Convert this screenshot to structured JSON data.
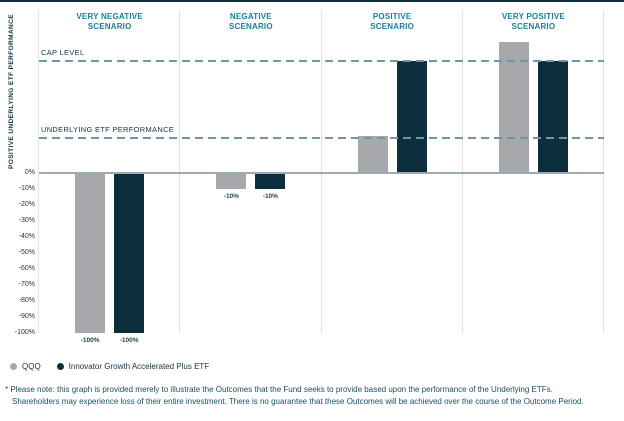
{
  "colors": {
    "qqq_gray": "#a6a8ab",
    "etf_navy": "#0d2e3c",
    "heading_teal": "#1b7f9a",
    "dashed_reference": "#7097a2",
    "baseline_gray": "#9faaae",
    "axis_text_navy": "#16323f",
    "footnote_navy": "#1d4e63"
  },
  "chart_data": {
    "type": "bar",
    "title": "",
    "y_axis_title": "POSITIVE UNDERLYING ETF PERFORMANCE",
    "categories": [
      "VERY NEGATIVE SCENARIO",
      "NEGATIVE SCENARIO",
      "POSITIVE SCENARIO",
      "VERY POSITIVE SCENARIO"
    ],
    "series": [
      {
        "name": "QQQ",
        "color": "#a6a8ab",
        "values": [
          -100,
          -10,
          23,
          82
        ]
      },
      {
        "name": "Innovator Growth Accelerated Plus ETF",
        "color": "#0d2e3c",
        "values": [
          -100,
          -10,
          70,
          70
        ]
      }
    ],
    "bar_labels": [
      [
        "-100%",
        "-100%"
      ],
      [
        "-10%",
        "-10%"
      ],
      [
        "",
        ""
      ],
      [
        "",
        ""
      ]
    ],
    "reference_lines": [
      {
        "label": "CAP LEVEL",
        "value": 70
      },
      {
        "label": "UNDERLYING ETF PERFORMANCE",
        "value": 22
      }
    ],
    "y_ticks": [
      {
        "label": "0%",
        "value": 0
      },
      {
        "label": "-10%",
        "value": -10
      },
      {
        "label": "-20%",
        "value": -20
      },
      {
        "label": "-30%",
        "value": -30
      },
      {
        "label": "-40%",
        "value": -40
      },
      {
        "label": "-50%",
        "value": -50
      },
      {
        "label": "-60%",
        "value": -60
      },
      {
        "label": "-70%",
        "value": -70
      },
      {
        "label": "-80%",
        "value": -80
      },
      {
        "label": "-90%",
        "value": -90
      },
      {
        "label": "-100%",
        "value": -100
      }
    ],
    "ylim": [
      -100,
      102
    ],
    "grid": "section-dividers-vertical",
    "legend_position": "bottom-left"
  },
  "footnote": {
    "line1": "* Please note: this graph is provided merely to illustrate the Outcomes that the Fund seeks to provide based upon the performance of the Underlying ETFs.",
    "line2": "Shareholders may experience loss of their entire investment. There is no guarantee that these Outcomes will be achieved over the course of the Outcome Period."
  }
}
